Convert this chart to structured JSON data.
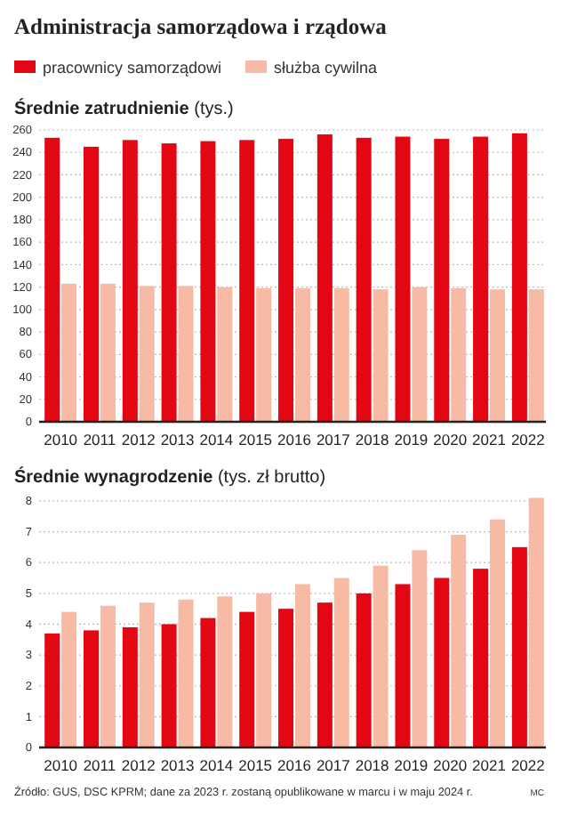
{
  "chart_data": [
    {
      "type": "bar",
      "title": "Administracja samorządowa i rządowa",
      "subtitle": "Średnie zatrudnienie (tys.)",
      "categories": [
        "2010",
        "2011",
        "2012",
        "2013",
        "2014",
        "2015",
        "2016",
        "2017",
        "2018",
        "2019",
        "2020",
        "2021",
        "2022"
      ],
      "series": [
        {
          "name": "pracownicy samorządowi",
          "color": "#e30613",
          "values": [
            253,
            245,
            251,
            248,
            250,
            251,
            252,
            256,
            253,
            254,
            252,
            254,
            257
          ]
        },
        {
          "name": "służba cywilna",
          "color": "#f7bba5",
          "values": [
            123,
            123,
            121,
            121,
            120,
            119,
            119,
            119,
            118,
            120,
            119,
            118,
            118
          ]
        }
      ],
      "ylim": [
        0,
        260
      ],
      "yticks": [
        0,
        20,
        40,
        60,
        80,
        100,
        120,
        140,
        160,
        180,
        200,
        220,
        240,
        260
      ],
      "grid": "y",
      "legend": "top left"
    },
    {
      "type": "bar",
      "subtitle": "Średnie wynagrodzenie (tys. zł brutto)",
      "categories": [
        "2010",
        "2011",
        "2012",
        "2013",
        "2014",
        "2015",
        "2016",
        "2017",
        "2018",
        "2019",
        "2020",
        "2021",
        "2022"
      ],
      "series": [
        {
          "color": "#e30613",
          "values": [
            3.7,
            3.8,
            3.9,
            4.0,
            4.2,
            4.4,
            4.5,
            4.7,
            5.0,
            5.3,
            5.5,
            5.8,
            6.5
          ]
        },
        {
          "color": "#f7bba5",
          "values": [
            4.4,
            4.6,
            4.7,
            4.8,
            4.9,
            5.0,
            5.3,
            5.5,
            5.9,
            6.4,
            6.9,
            7.4,
            8.1
          ]
        }
      ],
      "ylim": [
        0,
        8.2
      ],
      "yticks": [
        0,
        1,
        2,
        3,
        4,
        5,
        6,
        7,
        8
      ],
      "grid": "y",
      "annotations": [
        "Źródło: GUS, DSC KPRM; dane za 2023 r. zostaną opublikowane w marcu i w maju 2024 r.",
        "MC"
      ]
    }
  ]
}
